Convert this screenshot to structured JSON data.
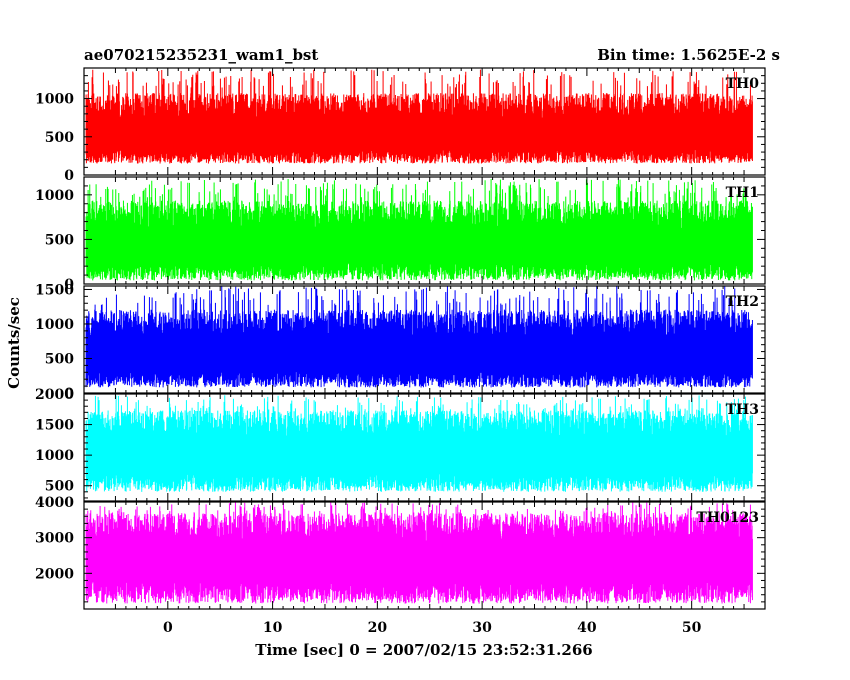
{
  "chart_data": {
    "type": "line",
    "title_left": "ae070215235231_wam1_bst",
    "title_right": "Bin time: 1.5625E-2 s",
    "xlabel": "Time [sec] 0 = 2007/02/15 23:52:31.266",
    "ylabel": "Counts/sec",
    "xlim": [
      -8,
      57
    ],
    "x_ticks": [
      0,
      10,
      20,
      30,
      40,
      50
    ],
    "x_tick_labels": [
      "0",
      "10",
      "20",
      "30",
      "40",
      "50"
    ],
    "data_x_range": [
      -7.8,
      55.8
    ],
    "grid": false,
    "panels": [
      {
        "name": "TH0",
        "color": "#ff0000",
        "ylim": [
          0,
          1400
        ],
        "y_ticks": [
          0,
          500,
          1000
        ],
        "y_tick_labels": [
          "0",
          "500",
          "1000"
        ],
        "baseline": 580,
        "low": 150,
        "peak": 1380
      },
      {
        "name": "TH1",
        "color": "#00ff00",
        "ylim": [
          0,
          1200
        ],
        "y_ticks": [
          0,
          500,
          1000
        ],
        "y_tick_labels": [
          "0",
          "500",
          "1000"
        ],
        "baseline": 480,
        "low": 40,
        "peak": 1180
      },
      {
        "name": "TH2",
        "color": "#0000ff",
        "ylim": [
          0,
          1550
        ],
        "y_ticks": [
          0,
          500,
          1000,
          1500
        ],
        "y_tick_labels": [
          "0",
          "500",
          "1000",
          "1500"
        ],
        "baseline": 620,
        "low": 80,
        "peak": 1550
      },
      {
        "name": "TH3",
        "color": "#00ffff",
        "ylim": [
          250,
          2000
        ],
        "y_ticks": [
          500,
          1000,
          1500,
          2000
        ],
        "y_tick_labels": [
          "500",
          "1000",
          "1500",
          "2000"
        ],
        "baseline": 1100,
        "low": 400,
        "peak": 1980
      },
      {
        "name": "TH0123",
        "color": "#ff00ff",
        "ylim": [
          1000,
          4000
        ],
        "y_ticks": [
          2000,
          3000,
          4000
        ],
        "y_tick_labels": [
          "2000",
          "3000",
          "4000"
        ],
        "baseline": 2550,
        "low": 1150,
        "peak": 4000
      }
    ]
  }
}
